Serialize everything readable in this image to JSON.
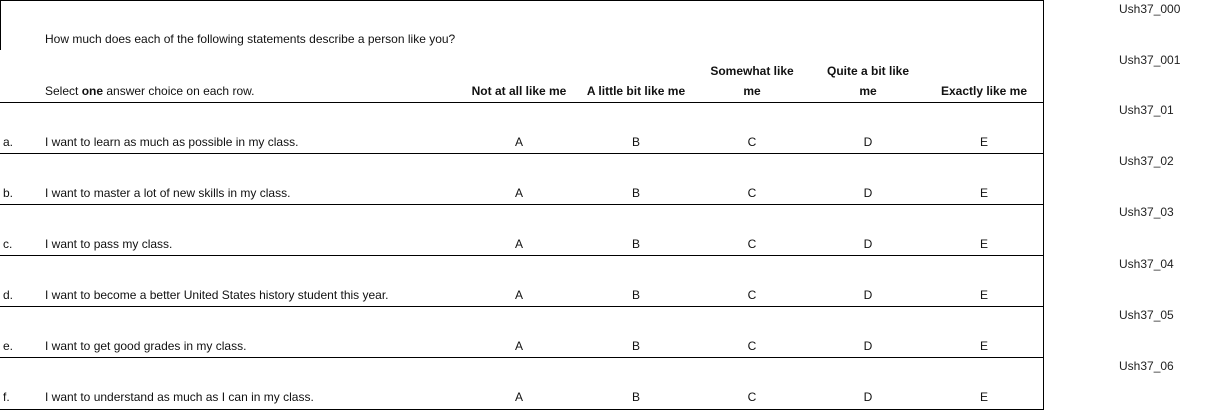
{
  "question": "How much does each of the following statements describe a person like you?",
  "instruction": {
    "before": "Select ",
    "bold": "one",
    "after": " answer choice on each row."
  },
  "columns": [
    "Not at all like me",
    "A little bit like me",
    "Somewhat like me",
    "Quite a bit like me",
    "Exactly like me"
  ],
  "rows": [
    {
      "letter": "a.",
      "statement": "I want to learn as much as possible in my  class.",
      "options": [
        "A",
        "B",
        "C",
        "D",
        "E"
      ]
    },
    {
      "letter": "b.",
      "statement": "I want to master a lot of new skills in my  class.",
      "options": [
        "A",
        "B",
        "C",
        "D",
        "E"
      ]
    },
    {
      "letter": "c.",
      "statement": "I want to pass my class.",
      "options": [
        "A",
        "B",
        "C",
        "D",
        "E"
      ]
    },
    {
      "letter": "d.",
      "statement": "I want to become a better United States history student this year.",
      "options": [
        "A",
        "B",
        "C",
        "D",
        "E"
      ]
    },
    {
      "letter": "e.",
      "statement": "I want to get good grades in my class.",
      "options": [
        "A",
        "B",
        "C",
        "D",
        "E"
      ]
    },
    {
      "letter": "f.",
      "statement": "I want to understand as much as I can in my class.",
      "options": [
        "A",
        "B",
        "C",
        "D",
        "E"
      ]
    }
  ],
  "codes": [
    "Ush37_000",
    "Ush37_001",
    "Ush37_01",
    "Ush37_02",
    "Ush37_03",
    "Ush37_04",
    "Ush37_05",
    "Ush37_06"
  ]
}
